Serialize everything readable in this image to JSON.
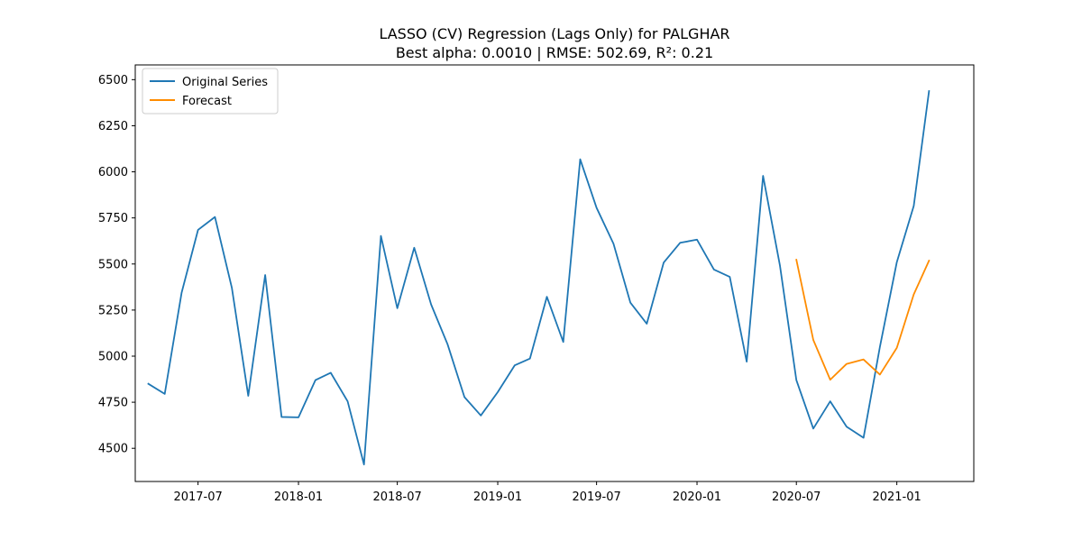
{
  "chart_data": {
    "type": "line",
    "title": "LASSO (CV) Regression (Lags Only) for PALGHAR",
    "subtitle": "Best alpha: 0.0010 | RMSE: 502.69, R²: 0.21",
    "xlabel": "",
    "ylabel": "",
    "xlim": [
      "2017-03-08",
      "2021-05-22"
    ],
    "ylim": [
      4320,
      6580
    ],
    "x_ticks": [
      "2017-07-01",
      "2018-01-01",
      "2018-07-01",
      "2019-01-01",
      "2019-07-01",
      "2020-01-01",
      "2020-07-01",
      "2021-01-01"
    ],
    "x_tick_labels": [
      "2017-07",
      "2018-01",
      "2018-07",
      "2019-01",
      "2019-07",
      "2020-01",
      "2020-07",
      "2021-01"
    ],
    "y_ticks": [
      4500,
      4750,
      5000,
      5250,
      5500,
      5750,
      6000,
      6250,
      6500
    ],
    "y_tick_labels": [
      "4500",
      "4750",
      "5000",
      "5250",
      "5500",
      "5750",
      "6000",
      "6250",
      "6500"
    ],
    "grid": false,
    "legend_position": "top-left",
    "series": [
      {
        "name": "Original Series",
        "color": "#1f77b4",
        "x": [
          "2017-04-01",
          "2017-05-01",
          "2017-06-01",
          "2017-07-01",
          "2017-08-01",
          "2017-09-01",
          "2017-10-01",
          "2017-11-01",
          "2017-12-01",
          "2018-01-01",
          "2018-02-01",
          "2018-03-01",
          "2018-04-01",
          "2018-05-01",
          "2018-06-01",
          "2018-07-01",
          "2018-08-01",
          "2018-09-01",
          "2018-10-01",
          "2018-11-01",
          "2018-12-01",
          "2019-01-01",
          "2019-02-01",
          "2019-03-01",
          "2019-04-01",
          "2019-05-01",
          "2019-06-01",
          "2019-07-01",
          "2019-08-01",
          "2019-09-01",
          "2019-10-01",
          "2019-11-01",
          "2019-12-01",
          "2020-01-01",
          "2020-02-01",
          "2020-03-01",
          "2020-04-01",
          "2020-05-01",
          "2020-06-01",
          "2020-07-01",
          "2020-08-01",
          "2020-09-01",
          "2020-10-01",
          "2020-11-01",
          "2020-12-01",
          "2021-01-01",
          "2021-02-01",
          "2021-03-01"
        ],
        "values": [
          4850,
          4795,
          5345,
          5685,
          5755,
          5370,
          4785,
          5440,
          4670,
          4668,
          4870,
          4910,
          4755,
          4412,
          5652,
          5260,
          5588,
          5280,
          5065,
          4778,
          4678,
          4805,
          4950,
          4987,
          5322,
          5077,
          6068,
          5805,
          5610,
          5290,
          5176,
          5508,
          5615,
          5632,
          5470,
          5430,
          4970,
          5978,
          5490,
          4870,
          4607,
          4755,
          4617,
          4557,
          5050,
          5510,
          5815,
          6438
        ]
      },
      {
        "name": "Forecast",
        "color": "#ff8c00",
        "x": [
          "2020-07-01",
          "2020-08-01",
          "2020-09-01",
          "2020-10-01",
          "2020-11-01",
          "2020-12-01",
          "2021-01-01",
          "2021-02-01",
          "2021-03-01"
        ],
        "values": [
          5523,
          5088,
          4872,
          4958,
          4982,
          4900,
          5045,
          5335,
          5518
        ]
      }
    ]
  }
}
